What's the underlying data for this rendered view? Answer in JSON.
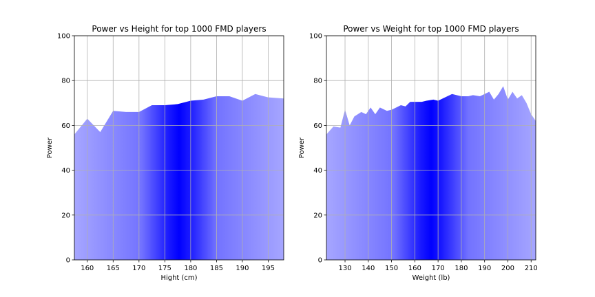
{
  "chart_data": [
    {
      "type": "area",
      "title": "Power vs Height for top 1000 FMD players",
      "xlabel": "Hight (cm)",
      "ylabel": "Power",
      "xlim": [
        157.5,
        198
      ],
      "ylim": [
        0,
        100
      ],
      "xticks": [
        160,
        165,
        170,
        175,
        180,
        185,
        190,
        195
      ],
      "yticks": [
        0,
        20,
        40,
        60,
        80,
        100
      ],
      "grid": true,
      "fill_color": "#0000ff",
      "fill_gradient": "dark blue at the center of the data range, pale blue toward the edges",
      "x": [
        157.5,
        160,
        162.5,
        165,
        167.5,
        170,
        172.5,
        175,
        177.5,
        180,
        182.5,
        185,
        187.5,
        190,
        192.5,
        195,
        198
      ],
      "y": [
        56,
        63,
        57,
        66.5,
        66,
        66,
        69,
        69,
        69.5,
        71,
        71.5,
        73,
        73,
        71,
        74,
        72.5,
        72
      ]
    },
    {
      "type": "area",
      "title": "Power vs Weight for top 1000 FMD players",
      "xlabel": "Weight (lb)",
      "ylabel": "Power",
      "xlim": [
        122,
        212
      ],
      "ylim": [
        0,
        100
      ],
      "xticks": [
        130,
        140,
        150,
        160,
        170,
        180,
        190,
        200,
        210
      ],
      "yticks": [
        0,
        20,
        40,
        60,
        80,
        100
      ],
      "grid": true,
      "fill_color": "#0000ff",
      "fill_gradient": "dark blue at the center of the data range, pale blue toward the edges",
      "x": [
        122,
        125,
        128,
        130,
        132,
        134,
        137,
        139,
        141,
        143,
        145,
        148,
        150,
        152,
        154,
        156,
        158,
        160,
        163,
        165,
        168,
        170,
        172,
        174,
        176,
        178,
        180,
        183,
        185,
        188,
        190,
        192,
        194,
        196,
        198,
        200,
        202,
        204,
        206,
        208,
        210,
        212
      ],
      "y": [
        56,
        59.5,
        59,
        67,
        60,
        64,
        66,
        65,
        68,
        65,
        68,
        66.5,
        67,
        68,
        69,
        68.5,
        70.5,
        70.5,
        70.5,
        71,
        71.5,
        71,
        72,
        73,
        74,
        73.5,
        73,
        73,
        73.5,
        73,
        74,
        75,
        71.5,
        74,
        77.5,
        71.5,
        75,
        72,
        73.5,
        70,
        65,
        62
      ]
    }
  ]
}
